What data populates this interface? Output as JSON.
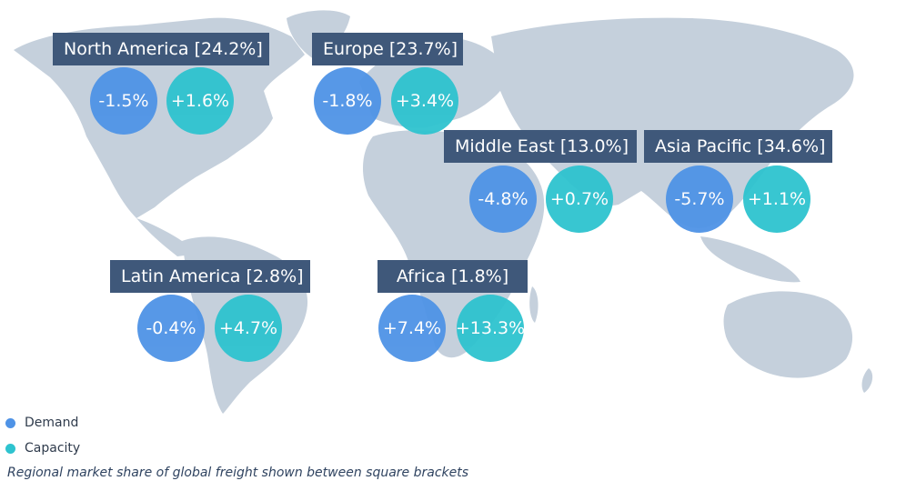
{
  "colors": {
    "demand": "#4f93e6",
    "capacity": "#2ec3cf",
    "label_bg": "#3f587a",
    "land": "#c5d0dc"
  },
  "regions": [
    {
      "label": "North America [24.2%]",
      "demand": "-1.5%",
      "capacity": "+1.6%"
    },
    {
      "label": "Europe [23.7%]",
      "demand": "-1.8%",
      "capacity": "+3.4%"
    },
    {
      "label": "Middle East [13.0%]",
      "demand": "-4.8%",
      "capacity": "+0.7%"
    },
    {
      "label": "Asia Pacific [34.6%]",
      "demand": "-5.7%",
      "capacity": "+1.1%"
    },
    {
      "label": "Latin America [2.8%]",
      "demand": "-0.4%",
      "capacity": "+4.7%"
    },
    {
      "label": "Africa [1.8%]",
      "demand": "+7.4%",
      "capacity": "+13.3%"
    }
  ],
  "legend": {
    "demand_label": "Demand",
    "capacity_label": "Capacity"
  },
  "footnote": "Regional market share of global freight shown between square brackets"
}
